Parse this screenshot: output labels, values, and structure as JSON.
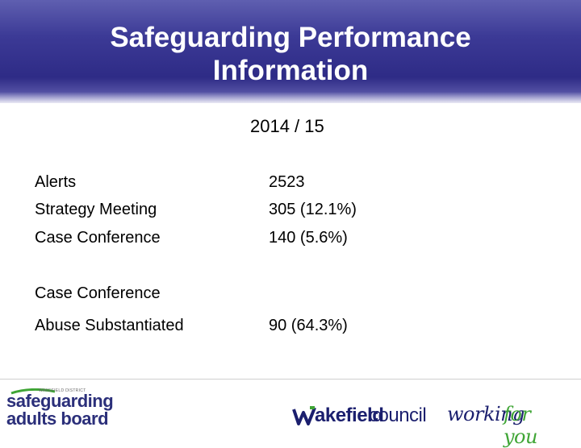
{
  "header": {
    "title_line1": "Safeguarding Performance",
    "title_line2": "Information"
  },
  "period": "2014 / 15",
  "rows": [
    {
      "label": "Alerts",
      "value": "2523"
    },
    {
      "label": "Strategy Meeting",
      "value": "305 (12.1%)"
    },
    {
      "label": "Case Conference",
      "value": "140 (5.6%)"
    }
  ],
  "case_conference_heading": "Case Conference",
  "abuse": {
    "label": "Abuse Substantiated",
    "value": "90 (64.3%)"
  },
  "footer": {
    "left_logo": {
      "small_text": "WAKEFIELD DISTRICT",
      "line1": "safeguarding",
      "line2": "adults board"
    },
    "right_logo": {
      "part1": "akefield",
      "part2": "council",
      "part3": "working",
      "part4": "for you"
    }
  },
  "colors": {
    "header_blue": "#3c3a96",
    "brand_navy": "#1b1f6e",
    "brand_green": "#3fa535"
  }
}
